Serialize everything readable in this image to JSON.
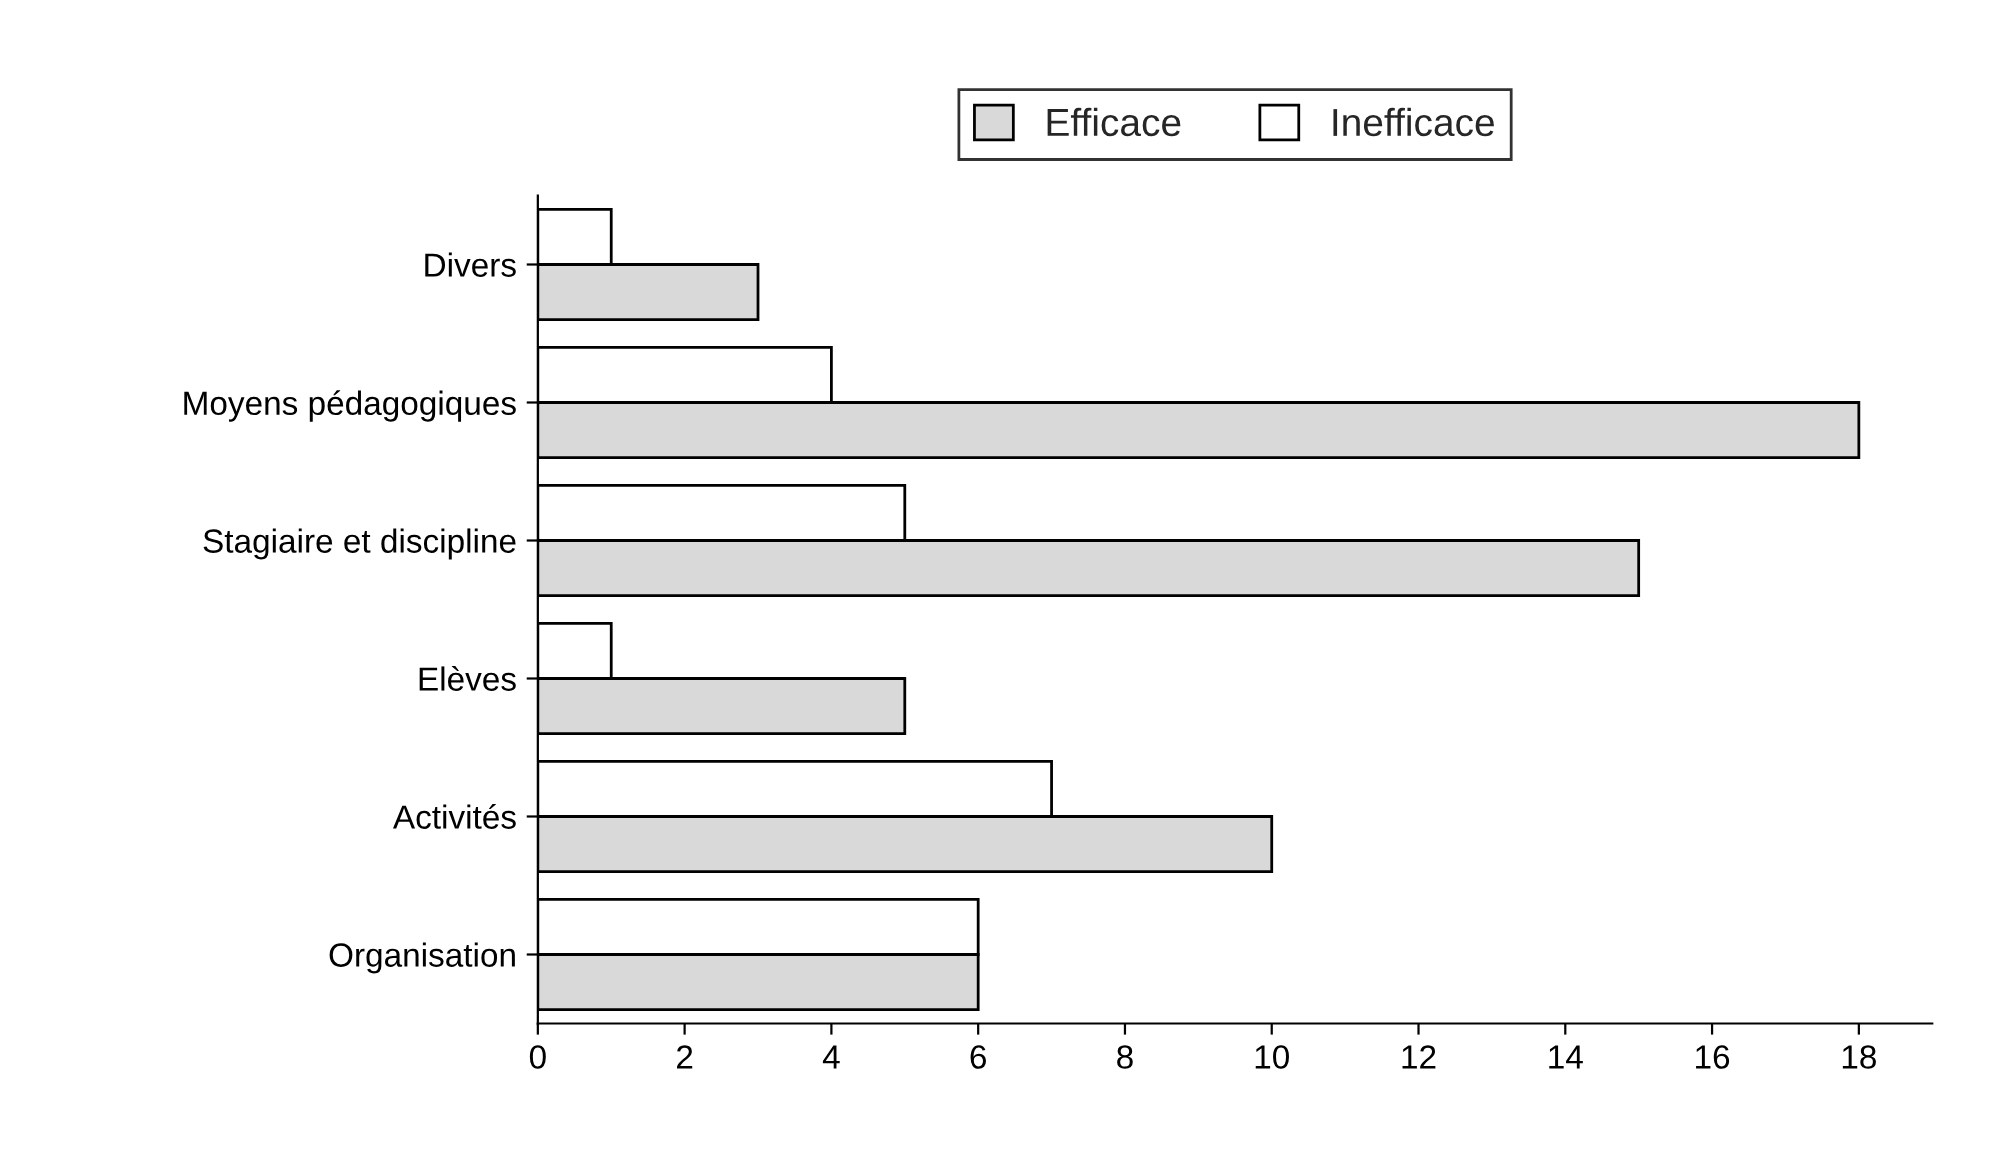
{
  "chart_data": {
    "type": "bar",
    "orientation": "horizontal",
    "categories": [
      "Divers",
      "Moyens pédagogiques",
      "Stagiaire et discipline",
      "Elèves",
      "Activités",
      "Organisation"
    ],
    "series": [
      {
        "name": "Efficace",
        "color": "#d9d9d9",
        "values": [
          3,
          18,
          15,
          5,
          10,
          6
        ]
      },
      {
        "name": "Inefficace",
        "color": "#ffffff",
        "values": [
          1,
          4,
          5,
          1,
          7,
          6
        ]
      }
    ],
    "xlim": [
      0,
      19
    ],
    "xticks": [
      0,
      2,
      4,
      6,
      8,
      10,
      12,
      14,
      16,
      18
    ],
    "grid": false,
    "legend": "top"
  }
}
